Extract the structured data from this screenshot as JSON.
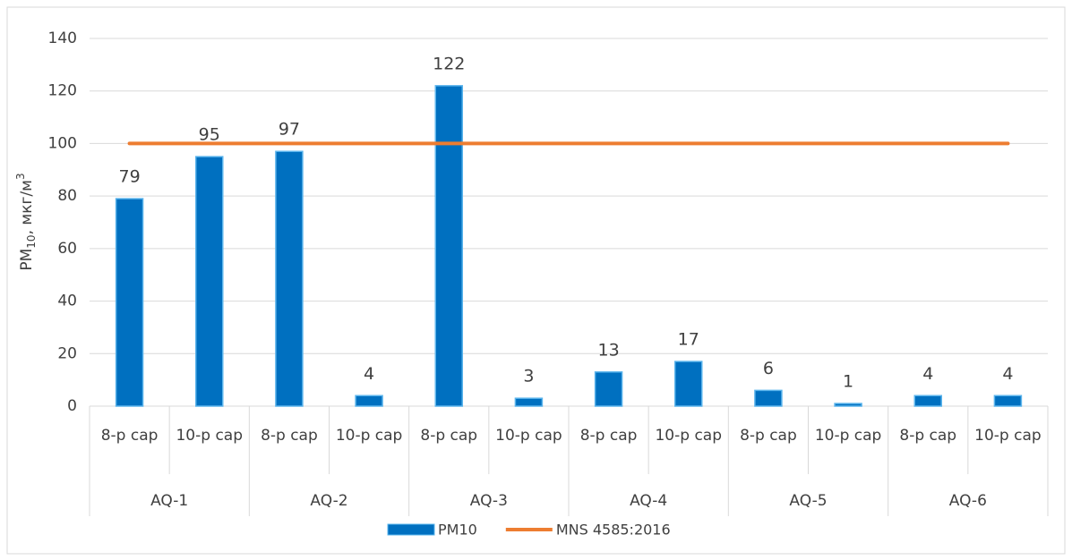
{
  "chart_data": {
    "type": "bar",
    "groups": [
      "AQ-1",
      "AQ-2",
      "AQ-3",
      "AQ-4",
      "AQ-5",
      "AQ-6"
    ],
    "categories": [
      "8-р сар",
      "10-р сар",
      "8-р сар",
      "10-р сар",
      "8-р сар",
      "10-р сар",
      "8-р сар",
      "10-р сар",
      "8-р сар",
      "10-р сар",
      "8-р сар",
      "10-р сар"
    ],
    "ylabel": {
      "base": "PM",
      "sub": "10",
      "unit": ", мкг/м",
      "sup": "3"
    },
    "series": [
      {
        "name": "PM10",
        "type": "bar",
        "color": "#0070c0",
        "values": [
          79,
          95,
          97,
          4,
          122,
          3,
          13,
          17,
          6,
          1,
          4,
          4
        ]
      },
      {
        "name": "MNS 4585:2016",
        "type": "line",
        "color": "#ed7d31",
        "values": [
          100,
          100,
          100,
          100,
          100,
          100,
          100,
          100,
          100,
          100,
          100,
          100
        ]
      }
    ],
    "ylim": [
      0,
      140
    ],
    "yticks": [
      0,
      20,
      40,
      60,
      80,
      100,
      120,
      140
    ],
    "grid": true,
    "legend": "bottom"
  }
}
